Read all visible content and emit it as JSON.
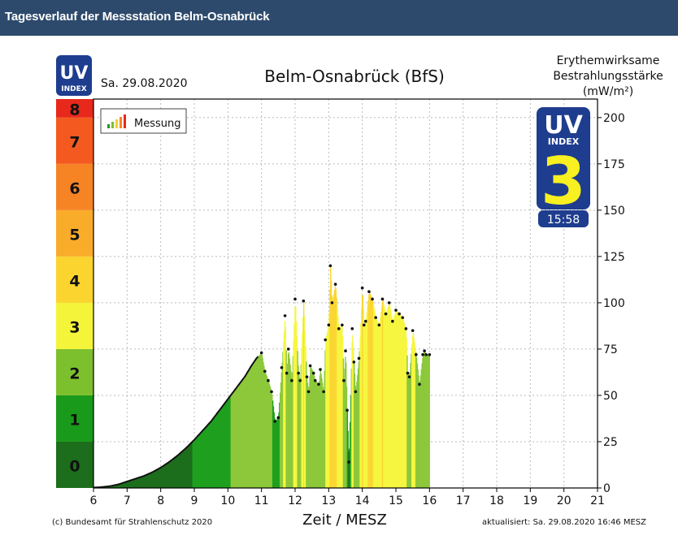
{
  "header": {
    "title": "Tagesverlauf der Messstation Belm-Osnabrück"
  },
  "logo": {
    "uv": "UV",
    "index": "INDEX"
  },
  "badge": {
    "uv": "UV",
    "index": "INDEX",
    "value": "3",
    "time": "15:58"
  },
  "legend": {
    "label": "Messung"
  },
  "copyright": "(c) Bundesamt für Strahlenschutz 2020",
  "updated": "aktualisiert: Sa. 29.08.2020  16:46  MESZ",
  "chart_data": {
    "type": "area",
    "title": "Belm-Osnabrück (BfS)",
    "date": "Sa. 29.08.2020",
    "xlabel": "Zeit / MESZ",
    "ylabel_right": [
      "Erythemwirksame",
      "Bestrahlungsstärke",
      "(mW/m²)"
    ],
    "xlim": [
      6,
      21
    ],
    "x_ticks": [
      "6",
      "7",
      "8",
      "9",
      "10",
      "11",
      "12",
      "13",
      "14",
      "15",
      "16",
      "17",
      "18",
      "19",
      "20",
      "21"
    ],
    "ylim": [
      0,
      210
    ],
    "y_ticks_right": [
      "0",
      "25",
      "50",
      "75",
      "100",
      "125",
      "150",
      "175",
      "200"
    ],
    "uv_index_scale": [
      "0",
      "1",
      "2",
      "3",
      "4",
      "5",
      "6",
      "7",
      "8"
    ],
    "uv_colors": [
      "#1c6e1c",
      "#1a9a1a",
      "#7dc02e",
      "#f4f43a",
      "#fbd430",
      "#f9ac2a",
      "#f68425",
      "#f45a1f",
      "#e8281b"
    ],
    "grid": true,
    "legend_position": "top-left",
    "series": [
      {
        "name": "Messung",
        "x": [
          6.0,
          6.25,
          6.5,
          6.75,
          7.0,
          7.25,
          7.5,
          7.75,
          8.0,
          8.25,
          8.5,
          8.75,
          9.0,
          9.25,
          9.5,
          9.75,
          10.0,
          10.25,
          10.5,
          10.7,
          10.85,
          11.0,
          11.1,
          11.2,
          11.3,
          11.4,
          11.5,
          11.6,
          11.7,
          11.75,
          11.8,
          11.9,
          12.0,
          12.1,
          12.15,
          12.25,
          12.35,
          12.4,
          12.45,
          12.55,
          12.6,
          12.7,
          12.75,
          12.85,
          12.9,
          13.0,
          13.05,
          13.1,
          13.2,
          13.3,
          13.4,
          13.45,
          13.5,
          13.55,
          13.6,
          13.7,
          13.75,
          13.8,
          13.9,
          14.0,
          14.05,
          14.1,
          14.2,
          14.3,
          14.4,
          14.5,
          14.6,
          14.7,
          14.8,
          14.9,
          15.0,
          15.1,
          15.2,
          15.3,
          15.35,
          15.4,
          15.5,
          15.6,
          15.7,
          15.8,
          15.85,
          15.9,
          16.0
        ],
        "values": [
          0.2,
          0.5,
          1,
          2,
          3.5,
          5,
          6.5,
          8.5,
          11,
          14,
          17.5,
          21.5,
          26,
          31,
          36,
          42,
          48,
          54,
          60,
          66,
          70,
          73,
          63,
          58,
          52,
          36,
          38,
          65,
          93,
          62,
          75,
          58,
          102,
          62,
          58,
          101,
          60,
          52,
          66,
          62,
          58,
          56,
          64,
          52,
          80,
          88,
          120,
          100,
          110,
          86,
          88,
          58,
          74,
          42,
          14,
          86,
          68,
          52,
          70,
          108,
          88,
          90,
          106,
          102,
          92,
          88,
          102,
          94,
          100,
          90,
          96,
          94,
          92,
          86,
          62,
          60,
          85,
          72,
          56,
          72,
          74,
          72,
          72
        ]
      }
    ]
  }
}
